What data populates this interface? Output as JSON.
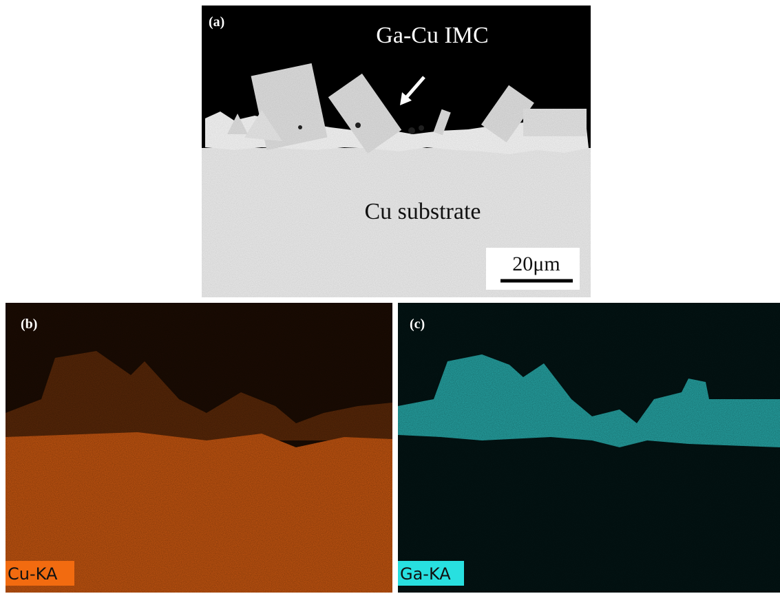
{
  "panels": [
    {
      "label": "(a)",
      "annotations": [
        "Ga-Cu IMC",
        "Cu substrate"
      ],
      "scale_bar": "20μm"
    },
    {
      "label": "(b)",
      "element": "Cu-KA"
    },
    {
      "label": "(c)",
      "element": "Ga-KA"
    }
  ]
}
